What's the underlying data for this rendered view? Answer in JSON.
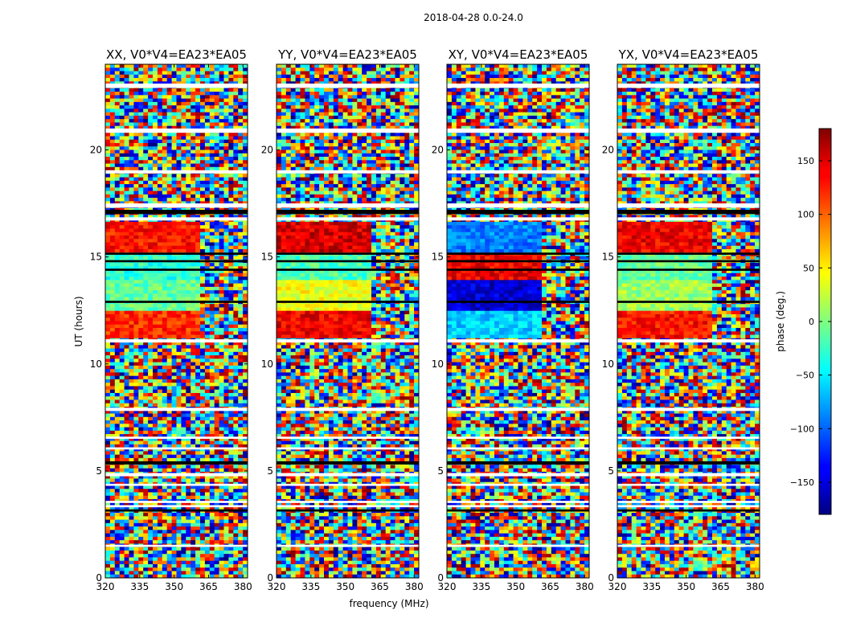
{
  "chart_data": {
    "type": "heatmap",
    "suptitle": "2018-04-28 0.0-24.0",
    "xlabel": "frequency (MHz)",
    "ylabel": "UT (hours)",
    "xlim": [
      320,
      382
    ],
    "ylim": [
      0,
      24
    ],
    "xticks": [
      320,
      335,
      350,
      365,
      380
    ],
    "yticks": [
      0,
      5,
      10,
      15,
      20
    ],
    "panels": [
      {
        "title": "XX, V0*V4=EA23*EA05"
      },
      {
        "title": "YY, V0*V4=EA23*EA05"
      },
      {
        "title": "XY, V0*V4=EA23*EA05"
      },
      {
        "title": "YX, V0*V4=EA23*EA05"
      }
    ],
    "colorbar": {
      "label": "phase (deg.)",
      "range": [
        -180,
        180
      ],
      "ticks": [
        150,
        100,
        50,
        0,
        -50,
        -100,
        -150
      ],
      "colormap": "jet"
    },
    "blank_gaps_hours": [
      [
        22.9,
        23.1
      ],
      [
        20.8,
        21.0
      ],
      [
        18.9,
        19.05
      ],
      [
        17.3,
        17.5
      ],
      [
        16.7,
        16.85
      ],
      [
        11.0,
        11.15
      ],
      [
        7.8,
        7.95
      ],
      [
        6.5,
        6.6
      ],
      [
        6.0,
        6.1
      ],
      [
        4.75,
        4.9
      ],
      [
        4.3,
        4.4
      ],
      [
        3.5,
        3.6
      ],
      [
        3.3,
        3.4
      ],
      [
        1.45,
        1.55
      ]
    ],
    "flagged_bands_hours": [
      [
        17.0,
        17.2
      ],
      [
        15.1,
        15.2
      ],
      [
        14.75,
        14.85
      ],
      [
        14.35,
        14.45
      ],
      [
        12.85,
        12.95
      ],
      [
        5.3,
        5.45
      ],
      [
        3.1,
        3.2
      ]
    ],
    "coherent_block_hours": [
      11.2,
      16.6
    ],
    "coherent_block_phase_deg": {
      "XX": [
        120,
        -10,
        -30,
        130
      ],
      "YY": [
        140,
        40,
        -20,
        150
      ],
      "XY": [
        -60,
        -150,
        140,
        -90
      ],
      "YX": [
        130,
        10,
        -10,
        140
      ]
    }
  }
}
